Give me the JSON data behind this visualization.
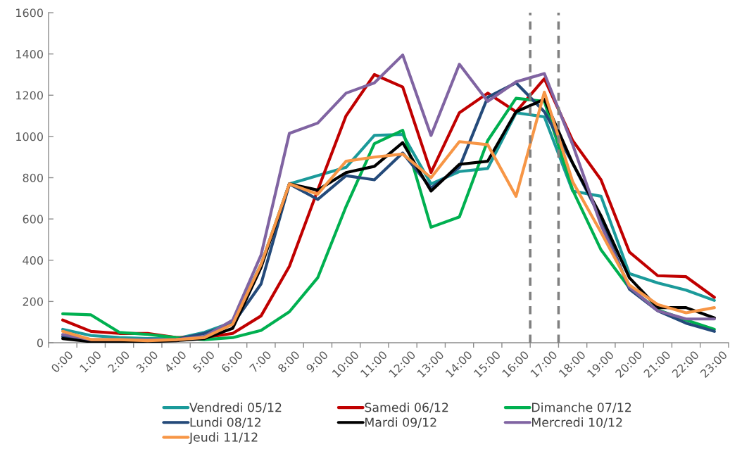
{
  "chart_data": {
    "type": "line",
    "x": [
      0,
      1,
      2,
      3,
      4,
      5,
      6,
      7,
      8,
      9,
      10,
      11,
      12,
      13,
      14,
      15,
      16,
      17,
      18,
      19,
      20,
      21,
      22,
      23
    ],
    "xlim": [
      -0.5,
      23.5
    ],
    "xticks": [
      {
        "value": -0.5,
        "label": null
      },
      {
        "value": 0,
        "label": "0:00"
      },
      {
        "value": 0.5,
        "label": null
      },
      {
        "value": 1,
        "label": "1:00"
      },
      {
        "value": 1.5,
        "label": null
      },
      {
        "value": 2,
        "label": "2:00"
      },
      {
        "value": 2.5,
        "label": null
      },
      {
        "value": 3,
        "label": "3:00"
      },
      {
        "value": 3.5,
        "label": null
      },
      {
        "value": 4,
        "label": "4:00"
      },
      {
        "value": 4.5,
        "label": null
      },
      {
        "value": 5,
        "label": "5:00"
      },
      {
        "value": 5.5,
        "label": null
      },
      {
        "value": 6,
        "label": "6:00"
      },
      {
        "value": 6.5,
        "label": null
      },
      {
        "value": 7,
        "label": "7:00"
      },
      {
        "value": 7.5,
        "label": null
      },
      {
        "value": 8,
        "label": "8:00"
      },
      {
        "value": 8.5,
        "label": null
      },
      {
        "value": 9,
        "label": "9:00"
      },
      {
        "value": 9.5,
        "label": null
      },
      {
        "value": 10,
        "label": "10:00"
      },
      {
        "value": 10.5,
        "label": null
      },
      {
        "value": 11,
        "label": "11:00"
      },
      {
        "value": 11.5,
        "label": null
      },
      {
        "value": 12,
        "label": "12:00"
      },
      {
        "value": 12.5,
        "label": null
      },
      {
        "value": 13,
        "label": "13:00"
      },
      {
        "value": 13.5,
        "label": null
      },
      {
        "value": 14,
        "label": "14:00"
      },
      {
        "value": 14.5,
        "label": null
      },
      {
        "value": 15,
        "label": "15:00"
      },
      {
        "value": 15.5,
        "label": null
      },
      {
        "value": 16,
        "label": "16:00"
      },
      {
        "value": 16.5,
        "label": null
      },
      {
        "value": 17,
        "label": "17:00"
      },
      {
        "value": 17.5,
        "label": null
      },
      {
        "value": 18,
        "label": "18:00"
      },
      {
        "value": 18.5,
        "label": null
      },
      {
        "value": 19,
        "label": "19:00"
      },
      {
        "value": 19.5,
        "label": null
      },
      {
        "value": 20,
        "label": "20:00"
      },
      {
        "value": 20.5,
        "label": null
      },
      {
        "value": 21,
        "label": "21:00"
      },
      {
        "value": 21.5,
        "label": null
      },
      {
        "value": 22,
        "label": "22:00"
      },
      {
        "value": 22.5,
        "label": null
      },
      {
        "value": 23,
        "label": "23:00"
      },
      {
        "value": 23.5,
        "label": null
      }
    ],
    "ylim": [
      0,
      1600
    ],
    "yticks": [
      0,
      200,
      400,
      600,
      800,
      1000,
      1200,
      1400,
      1600
    ],
    "series": [
      {
        "name": "Vendredi 05/12",
        "color": "#1b9a9a",
        "values": [
          65,
          35,
          25,
          20,
          20,
          50,
          100,
          380,
          770,
          810,
          850,
          1005,
          1010,
          770,
          830,
          845,
          1115,
          1095,
          735,
          710,
          335,
          290,
          255,
          205
        ]
      },
      {
        "name": "Samedi 06/12",
        "color": "#c00000",
        "values": [
          110,
          55,
          45,
          45,
          25,
          25,
          45,
          130,
          370,
          740,
          1100,
          1300,
          1240,
          825,
          1115,
          1210,
          1120,
          1280,
          980,
          790,
          440,
          325,
          320,
          220
        ]
      },
      {
        "name": "Dimanche 07/12",
        "color": "#00b050",
        "values": [
          140,
          135,
          50,
          40,
          25,
          15,
          25,
          60,
          150,
          315,
          660,
          965,
          1030,
          560,
          610,
          980,
          1185,
          1170,
          740,
          450,
          265,
          160,
          110,
          65
        ]
      },
      {
        "name": "Lundi 08/12",
        "color": "#244a7a",
        "values": [
          30,
          10,
          10,
          10,
          15,
          45,
          90,
          285,
          770,
          695,
          810,
          790,
          920,
          750,
          850,
          1190,
          1260,
          1120,
          870,
          600,
          260,
          155,
          95,
          55
        ]
      },
      {
        "name": "Mardi 09/12",
        "color": "#000000",
        "values": [
          20,
          5,
          5,
          5,
          10,
          20,
          70,
          365,
          770,
          740,
          825,
          855,
          970,
          735,
          865,
          880,
          1120,
          1180,
          870,
          615,
          315,
          170,
          170,
          120
        ]
      },
      {
        "name": "Mercredi 10/12",
        "color": "#8064a2",
        "values": [
          40,
          15,
          15,
          15,
          15,
          30,
          110,
          425,
          1015,
          1065,
          1210,
          1260,
          1395,
          1005,
          1350,
          1170,
          1265,
          1305,
          960,
          570,
          270,
          155,
          115,
          115
        ]
      },
      {
        "name": "Jeudi 11/12",
        "color": "#f79646",
        "values": [
          55,
          15,
          15,
          10,
          15,
          25,
          90,
          380,
          770,
          720,
          880,
          900,
          915,
          800,
          975,
          960,
          710,
          1215,
          780,
          535,
          280,
          185,
          145,
          170
        ]
      }
    ],
    "ref_lines": [
      {
        "axis": "x",
        "value": 16.5,
        "color": "#808080",
        "line_style": "dashed"
      },
      {
        "axis": "x",
        "value": 17.5,
        "color": "#808080",
        "line_style": "dashed"
      }
    ],
    "grid": false,
    "legend": "bottom"
  }
}
